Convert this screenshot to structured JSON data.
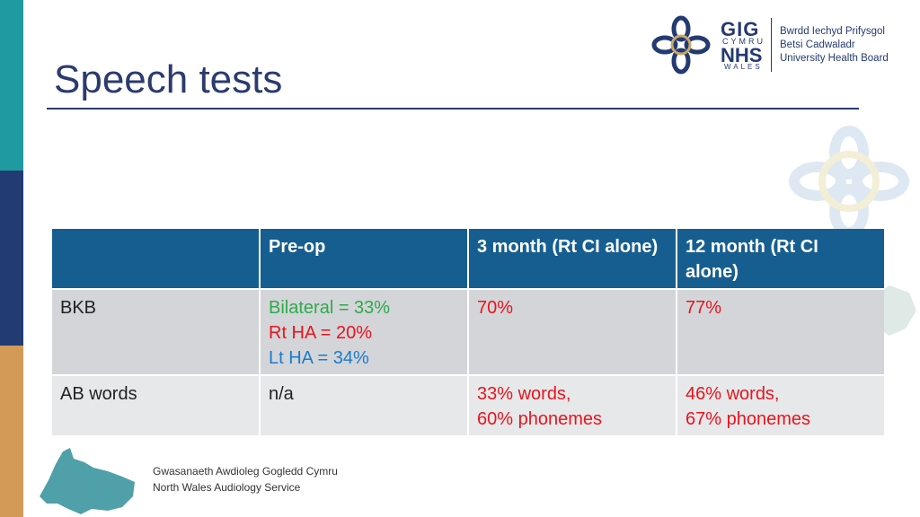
{
  "slide": {
    "title": "Speech tests"
  },
  "logo": {
    "gig": "GIG",
    "cymru": "CYMRU",
    "nhs": "NHS",
    "wales": "WALES",
    "org_lines": [
      "Bwrdd Iechyd Prifysgol",
      "Betsi Cadwaladr",
      "University Health Board"
    ]
  },
  "table": {
    "headers": [
      "",
      "Pre-op",
      "3 month (Rt CI alone)",
      "12 month (Rt CI alone)"
    ],
    "rows": [
      {
        "label": "BKB",
        "preop": [
          "Bilateral = 33%",
          "Rt HA = 20%",
          "Lt HA = 34%"
        ],
        "m3": "70%",
        "m12": "77%"
      },
      {
        "label": "AB words",
        "preop": [
          "n/a"
        ],
        "m3": [
          "33% words,",
          "60% phonemes"
        ],
        "m12": [
          "46% words,",
          "67% phonemes"
        ]
      }
    ]
  },
  "footer": {
    "line1": "Gwasanaeth Awdioleg Gogledd Cymru",
    "line2": "North Wales Audiology Service"
  },
  "colors": {
    "header_bg": "#175e90",
    "title": "#2b3b6e",
    "result_red": "#e8141c",
    "bilateral_green": "#2eaa4a",
    "lt_ha_blue": "#1a7ccc"
  }
}
